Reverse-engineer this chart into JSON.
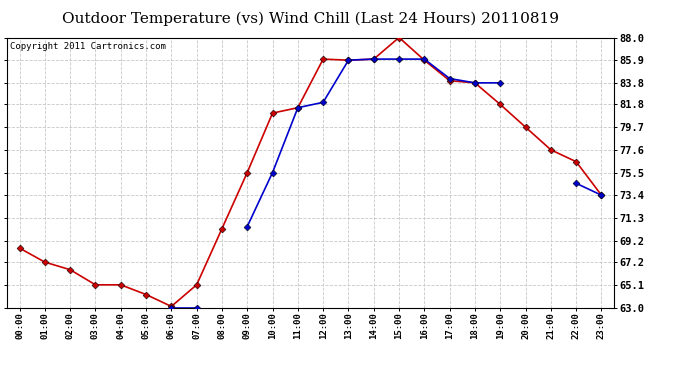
{
  "title": "Outdoor Temperature (vs) Wind Chill (Last 24 Hours) 20110819",
  "copyright": "Copyright 2011 Cartronics.com",
  "x_labels": [
    "00:00",
    "01:00",
    "02:00",
    "03:00",
    "04:00",
    "05:00",
    "06:00",
    "07:00",
    "08:00",
    "09:00",
    "10:00",
    "11:00",
    "12:00",
    "13:00",
    "14:00",
    "15:00",
    "16:00",
    "17:00",
    "18:00",
    "19:00",
    "20:00",
    "21:00",
    "22:00",
    "23:00"
  ],
  "temp_red": [
    68.5,
    67.2,
    66.5,
    65.1,
    65.1,
    64.2,
    63.1,
    65.1,
    70.3,
    75.5,
    81.0,
    81.5,
    86.0,
    85.9,
    86.0,
    88.0,
    85.9,
    84.0,
    83.8,
    81.8,
    79.7,
    77.6,
    76.5,
    73.4
  ],
  "wind_chill_blue": [
    null,
    null,
    null,
    null,
    null,
    null,
    63.0,
    63.0,
    null,
    70.5,
    75.5,
    81.5,
    82.0,
    85.9,
    86.0,
    86.0,
    86.0,
    84.2,
    83.8,
    83.8,
    null,
    null,
    74.5,
    73.4
  ],
  "ylim": [
    63.0,
    88.0
  ],
  "yticks": [
    63.0,
    65.1,
    67.2,
    69.2,
    71.3,
    73.4,
    75.5,
    77.6,
    79.7,
    81.8,
    83.8,
    85.9,
    88.0
  ],
  "bg_color": "#ffffff",
  "plot_bg_color": "#ffffff",
  "grid_color": "#c8c8c8",
  "red_color": "#cc0000",
  "blue_color": "#0000cc",
  "title_fontsize": 11,
  "copyright_fontsize": 6.5,
  "marker_size": 3.5,
  "line_width": 1.2
}
